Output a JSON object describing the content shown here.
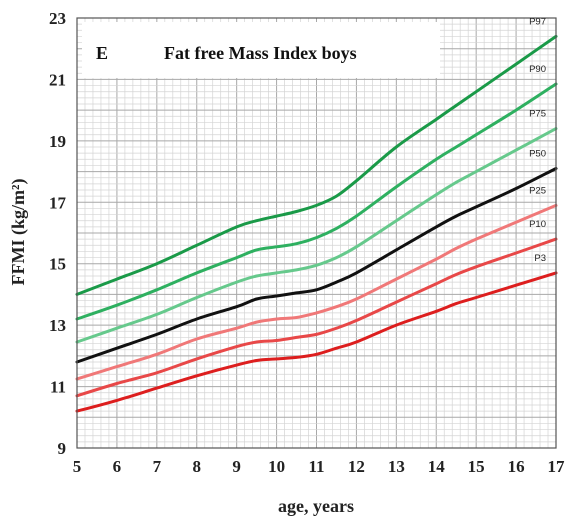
{
  "chart_data": {
    "type": "line",
    "panel": "E",
    "title": "Fat free Mass Index boys",
    "xlabel": "age, years",
    "ylabel": "FFMI (kg/m²)",
    "xlim": [
      5,
      17
    ],
    "ylim": [
      9,
      23
    ],
    "xticks": [
      "5",
      "6",
      "7",
      "8",
      "9",
      "10",
      "11",
      "12",
      "13",
      "14",
      "15",
      "16",
      "17"
    ],
    "yticks": [
      "9",
      "11",
      "13",
      "15",
      "17",
      "19",
      "21",
      "23"
    ],
    "grid": true,
    "x": [
      5,
      6,
      7,
      8,
      9,
      9.5,
      10,
      10.5,
      11,
      11.5,
      12,
      13,
      14,
      14.5,
      15,
      16,
      17
    ],
    "series": [
      {
        "name": "P97",
        "color": "#1a9a48",
        "width": 3,
        "values": [
          14.0,
          14.5,
          15.0,
          15.6,
          16.2,
          16.4,
          16.55,
          16.7,
          16.9,
          17.2,
          17.7,
          18.8,
          19.7,
          20.15,
          20.6,
          21.5,
          22.4
        ]
      },
      {
        "name": "P90",
        "color": "#2eb060",
        "width": 3,
        "values": [
          13.2,
          13.65,
          14.15,
          14.7,
          15.2,
          15.45,
          15.55,
          15.65,
          15.85,
          16.15,
          16.55,
          17.5,
          18.4,
          18.8,
          19.2,
          20.0,
          20.85
        ]
      },
      {
        "name": "P75",
        "color": "#66c98c",
        "width": 3,
        "values": [
          12.45,
          12.9,
          13.35,
          13.9,
          14.4,
          14.6,
          14.7,
          14.8,
          14.95,
          15.2,
          15.55,
          16.4,
          17.25,
          17.65,
          18.0,
          18.7,
          19.4
        ]
      },
      {
        "name": "P50",
        "color": "#111111",
        "width": 3,
        "values": [
          11.8,
          12.25,
          12.7,
          13.2,
          13.6,
          13.85,
          13.95,
          14.05,
          14.15,
          14.4,
          14.7,
          15.45,
          16.2,
          16.55,
          16.85,
          17.45,
          18.1
        ]
      },
      {
        "name": "P25",
        "color": "#f07878",
        "width": 3,
        "values": [
          11.25,
          11.65,
          12.05,
          12.55,
          12.9,
          13.1,
          13.2,
          13.25,
          13.4,
          13.6,
          13.85,
          14.5,
          15.15,
          15.5,
          15.8,
          16.35,
          16.9
        ]
      },
      {
        "name": "P10",
        "color": "#e84848",
        "width": 3,
        "values": [
          10.7,
          11.1,
          11.45,
          11.9,
          12.3,
          12.45,
          12.5,
          12.6,
          12.7,
          12.9,
          13.15,
          13.75,
          14.35,
          14.65,
          14.9,
          15.35,
          15.8
        ]
      },
      {
        "name": "P3",
        "color": "#dd1e1e",
        "width": 3,
        "values": [
          10.2,
          10.55,
          10.95,
          11.35,
          11.7,
          11.85,
          11.9,
          11.95,
          12.05,
          12.25,
          12.45,
          13.0,
          13.45,
          13.7,
          13.9,
          14.3,
          14.7
        ]
      }
    ]
  }
}
